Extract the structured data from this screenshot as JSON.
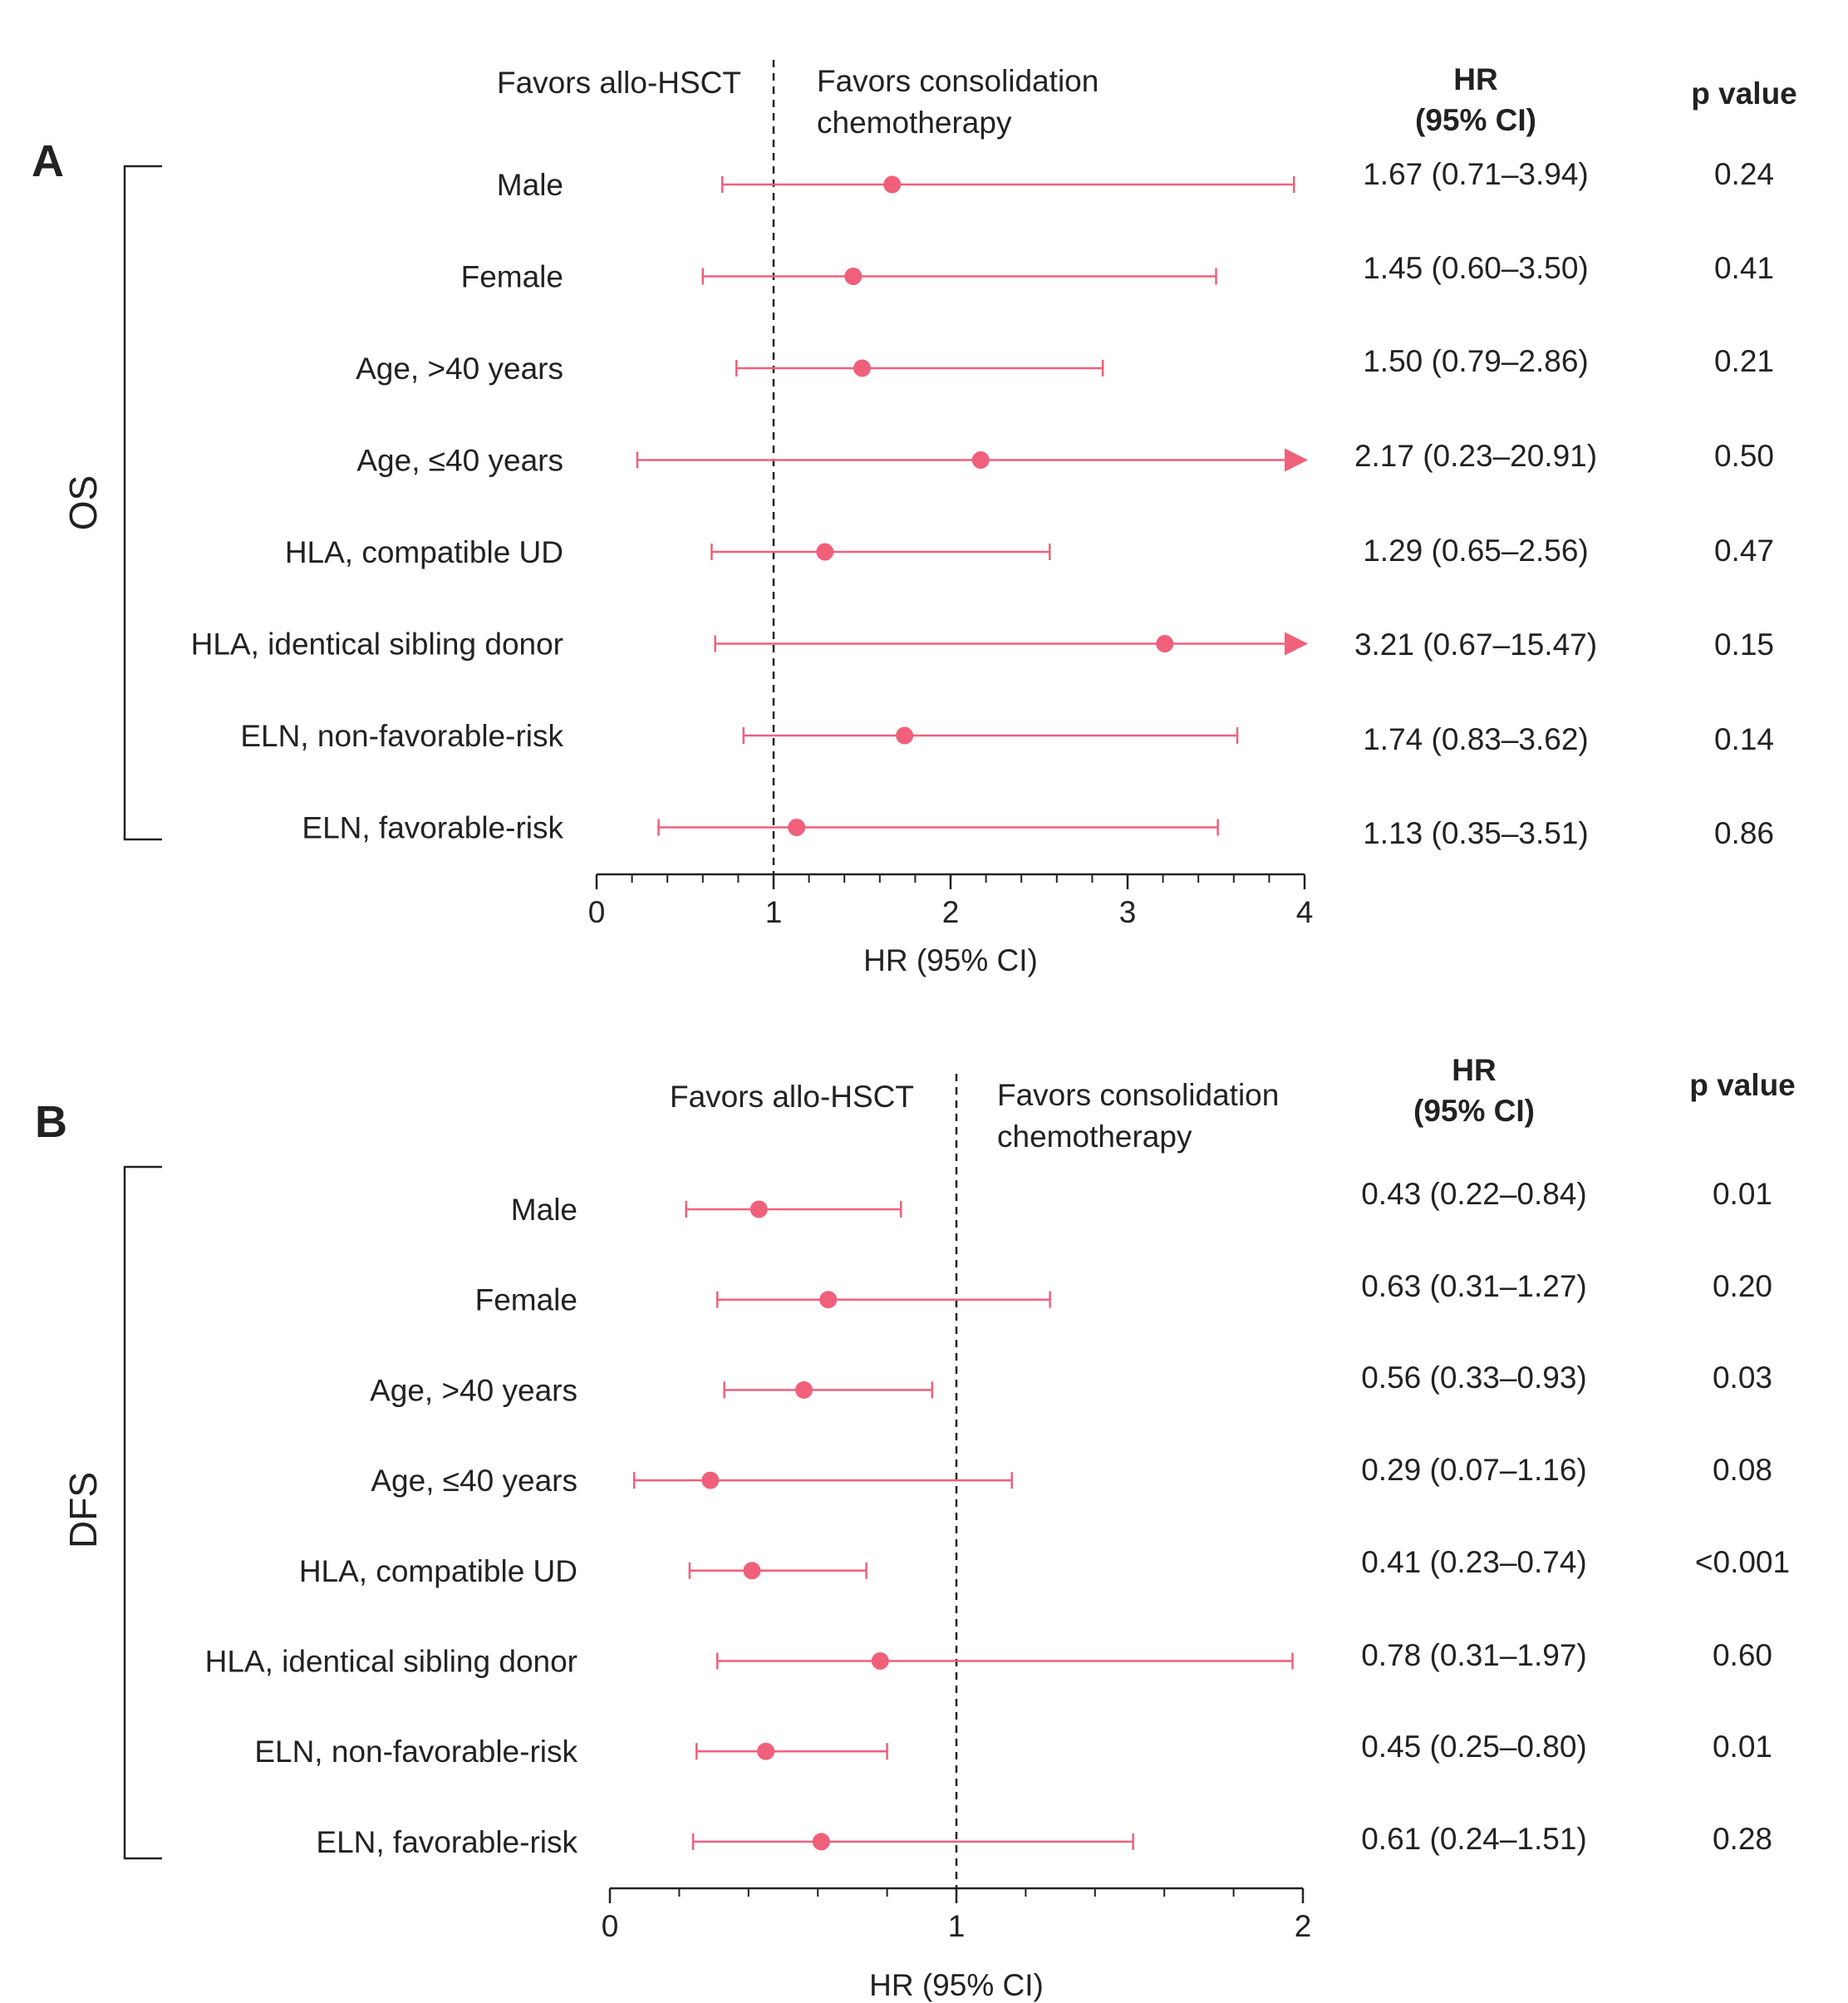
{
  "colors": {
    "marker": "#f0607a",
    "axis": "#222222",
    "text": "#222222",
    "reference_line": "#222222"
  },
  "chart_data": [
    {
      "type": "forest",
      "panel_label": "A",
      "group_label": "OS",
      "favors_left": "Favors allo-HSCT",
      "favors_right_line1": "Favors consolidation",
      "favors_right_line2": "chemotherapy",
      "hr_header_line1": "HR",
      "hr_header_line2": "(95% CI)",
      "p_header": "p value",
      "xlabel": "HR (95% CI)",
      "xlim": [
        0,
        4
      ],
      "major_ticks": [
        0,
        1,
        2,
        3,
        4
      ],
      "tick_labels": [
        "0",
        "1",
        "2",
        "3",
        "4"
      ],
      "minor_step": 0.2,
      "reference_value": 1,
      "rows": [
        {
          "label": "Male",
          "hr": 1.67,
          "lo": 0.71,
          "hi": 3.94,
          "hr_text": "1.67 (0.71–3.94)",
          "p": "0.24",
          "arrow": false
        },
        {
          "label": "Female",
          "hr": 1.45,
          "lo": 0.6,
          "hi": 3.5,
          "hr_text": "1.45 (0.60–3.50)",
          "p": "0.41",
          "arrow": false
        },
        {
          "label": "Age, >40 years",
          "hr": 1.5,
          "lo": 0.79,
          "hi": 2.86,
          "hr_text": "1.50 (0.79–2.86)",
          "p": "0.21",
          "arrow": false
        },
        {
          "label": "Age, ≤40 years",
          "hr": 2.17,
          "lo": 0.23,
          "hi": 20.91,
          "hr_text": "2.17 (0.23–20.91)",
          "p": "0.50",
          "arrow": true
        },
        {
          "label": "HLA, compatible UD",
          "hr": 1.29,
          "lo": 0.65,
          "hi": 2.56,
          "hr_text": "1.29 (0.65–2.56)",
          "p": "0.47",
          "arrow": false
        },
        {
          "label": "HLA, identical sibling donor",
          "hr": 3.21,
          "lo": 0.67,
          "hi": 15.47,
          "hr_text": "3.21 (0.67–15.47)",
          "p": "0.15",
          "arrow": true
        },
        {
          "label": "ELN, non-favorable-risk",
          "hr": 1.74,
          "lo": 0.83,
          "hi": 3.62,
          "hr_text": "1.74 (0.83–3.62)",
          "p": "0.14",
          "arrow": false
        },
        {
          "label": "ELN, favorable-risk",
          "hr": 1.13,
          "lo": 0.35,
          "hi": 3.51,
          "hr_text": "1.13 (0.35–3.51)",
          "p": "0.86",
          "arrow": false
        }
      ]
    },
    {
      "type": "forest",
      "panel_label": "B",
      "group_label": "DFS",
      "favors_left": "Favors allo-HSCT",
      "favors_right_line1": "Favors consolidation",
      "favors_right_line2": "chemotherapy",
      "hr_header_line1": "HR",
      "hr_header_line2": "(95% CI)",
      "p_header": "p value",
      "xlabel": "HR (95% CI)",
      "xlim": [
        0,
        2
      ],
      "major_ticks": [
        0,
        1,
        2
      ],
      "tick_labels": [
        "0",
        "1",
        "2"
      ],
      "minor_step": 0.2,
      "reference_value": 1,
      "rows": [
        {
          "label": "Male",
          "hr": 0.43,
          "lo": 0.22,
          "hi": 0.84,
          "hr_text": "0.43 (0.22–0.84)",
          "p": "0.01",
          "arrow": false
        },
        {
          "label": "Female",
          "hr": 0.63,
          "lo": 0.31,
          "hi": 1.27,
          "hr_text": "0.63 (0.31–1.27)",
          "p": "0.20",
          "arrow": false
        },
        {
          "label": "Age, >40 years",
          "hr": 0.56,
          "lo": 0.33,
          "hi": 0.93,
          "hr_text": "0.56 (0.33–0.93)",
          "p": "0.03",
          "arrow": false
        },
        {
          "label": "Age, ≤40 years",
          "hr": 0.29,
          "lo": 0.07,
          "hi": 1.16,
          "hr_text": "0.29 (0.07–1.16)",
          "p": "0.08",
          "arrow": false
        },
        {
          "label": "HLA, compatible UD",
          "hr": 0.41,
          "lo": 0.23,
          "hi": 0.74,
          "hr_text": "0.41 (0.23–0.74)",
          "p": "<0.001",
          "arrow": false
        },
        {
          "label": "HLA, identical sibling donor",
          "hr": 0.78,
          "lo": 0.31,
          "hi": 1.97,
          "hr_text": "0.78 (0.31–1.97)",
          "p": "0.60",
          "arrow": false
        },
        {
          "label": "ELN, non-favorable-risk",
          "hr": 0.45,
          "lo": 0.25,
          "hi": 0.8,
          "hr_text": "0.45 (0.25–0.80)",
          "p": "0.01",
          "arrow": false
        },
        {
          "label": "ELN, favorable-risk",
          "hr": 0.61,
          "lo": 0.24,
          "hi": 1.51,
          "hr_text": "0.61 (0.24–1.51)",
          "p": "0.28",
          "arrow": false
        }
      ]
    }
  ]
}
